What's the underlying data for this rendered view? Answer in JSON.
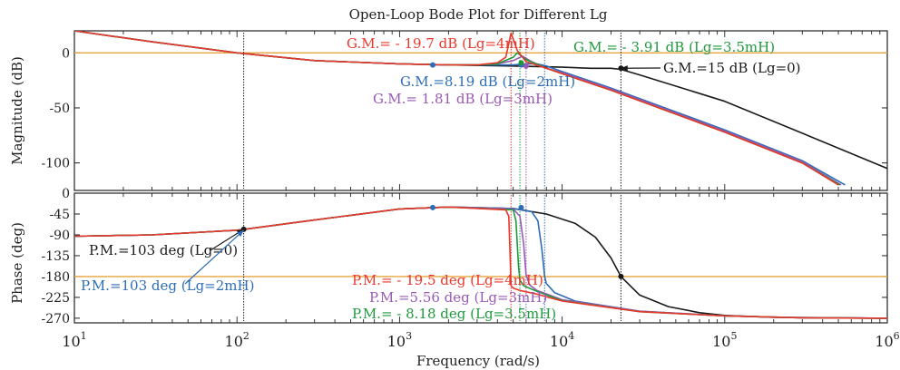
{
  "chart_data": {
    "type": "line",
    "title": "Open-Loop Bode Plot for Different Lg",
    "xlabel": "Frequency (rad/s)",
    "x_scale": "log",
    "xlim": [
      10,
      1000000
    ],
    "x_ticks": [
      {
        "value": 10,
        "base": "10",
        "exp": "1"
      },
      {
        "value": 100,
        "base": "10",
        "exp": "2"
      },
      {
        "value": 1000,
        "base": "10",
        "exp": "3"
      },
      {
        "value": 10000,
        "base": "10",
        "exp": "4"
      },
      {
        "value": 100000,
        "base": "10",
        "exp": "5"
      },
      {
        "value": 1000000,
        "base": "10",
        "exp": "6"
      }
    ],
    "grid": false,
    "colors": {
      "Lg=0": "#1a1a1a",
      "Lg=2mH": "#2e6db5",
      "Lg=3mH": "#9b59b6",
      "Lg=3.5mH": "#1e9a3c",
      "Lg=4mH": "#e8382c",
      "reference": "#e8a33c"
    },
    "magnitude": {
      "ylabel": "Magnitude (dB)",
      "ylim": [
        -125,
        20
      ],
      "y_ticks": [
        "0",
        "-50",
        "-100"
      ],
      "reference_line": 0,
      "series": [
        {
          "key": "Lg=0",
          "x": [
            10,
            30,
            100,
            300,
            1000,
            2000,
            5000,
            10000,
            15000,
            20000,
            23000,
            30000,
            100000,
            300000,
            1000000
          ],
          "y": [
            20,
            10,
            0,
            -7,
            -10,
            -11,
            -12,
            -13,
            -14,
            -14,
            -15,
            -20,
            -44,
            -73,
            -105
          ]
        },
        {
          "key": "Lg=2mH",
          "x": [
            10,
            30,
            100,
            300,
            1000,
            2000,
            3000,
            5000,
            6000,
            7000,
            8000,
            10000,
            20000,
            100000,
            300000,
            550000
          ],
          "y": [
            20,
            10,
            0,
            -7,
            -10,
            -11,
            -11,
            -11,
            -10,
            -10,
            -12,
            -17,
            -32,
            -70,
            -98,
            -120
          ]
        },
        {
          "key": "Lg=3mH",
          "x": [
            10,
            30,
            100,
            300,
            1000,
            2000,
            3000,
            4000,
            5000,
            5700,
            6500,
            8000,
            10000,
            20000,
            100000,
            300000,
            520000
          ],
          "y": [
            20,
            10,
            0,
            -7,
            -10,
            -11,
            -11,
            -10,
            -7,
            -3,
            -8,
            -14,
            -18,
            -33,
            -71,
            -99,
            -120
          ]
        },
        {
          "key": "Lg=3.5mH",
          "x": [
            10,
            30,
            100,
            300,
            1000,
            2000,
            3000,
            4000,
            5000,
            5300,
            6000,
            8000,
            10000,
            20000,
            100000,
            300000,
            510000
          ],
          "y": [
            20,
            10,
            0,
            -7,
            -10,
            -11,
            -11,
            -10,
            -4,
            0,
            -6,
            -14,
            -19,
            -34,
            -72,
            -100,
            -120
          ]
        },
        {
          "key": "Lg=4mH",
          "x": [
            10,
            30,
            100,
            300,
            1000,
            2000,
            3000,
            4000,
            4500,
            4850,
            5300,
            6000,
            8000,
            10000,
            20000,
            100000,
            300000,
            500000
          ],
          "y": [
            20,
            10,
            0,
            -7,
            -10,
            -11,
            -11,
            -9,
            -4,
            18,
            2,
            -8,
            -14,
            -19,
            -34,
            -72,
            -100,
            -120
          ]
        }
      ],
      "markers": [
        {
          "key": "Lg=0",
          "x": 23000,
          "y": -14
        },
        {
          "key": "Lg=2mH",
          "x": 1600,
          "y": -11
        },
        {
          "key": "Lg=2mH",
          "x": 5600,
          "y": -11
        },
        {
          "key": "Lg=3mH",
          "x": 6000,
          "y": -12
        },
        {
          "key": "Lg=3.5mH",
          "x": 5600,
          "y": -9
        }
      ],
      "annotations": [
        {
          "key": "Lg=4mH",
          "text": "G.M.= - 19.7 dB (Lg=4mH)",
          "anchor": "above crossover"
        },
        {
          "key": "Lg=3.5mH",
          "text": "G.M.= - 3.91 dB (Lg=3.5mH)",
          "anchor": "above crossover"
        },
        {
          "key": "Lg=0",
          "text": "G.M.=15 dB (Lg=0)",
          "anchor": "right of crossover"
        },
        {
          "key": "Lg=2mH",
          "text": "G.M.=8.19 dB (Lg=2mH)",
          "anchor": "below crossover"
        },
        {
          "key": "Lg=3mH",
          "text": "G.M.= 1.81 dB (Lg=3mH)",
          "anchor": "below crossover"
        }
      ]
    },
    "phase": {
      "ylabel": "Phase (deg)",
      "ylim": [
        -280,
        0
      ],
      "y_ticks": [
        "0",
        "-45",
        "-90",
        "-135",
        "-180",
        "-225",
        "-270"
      ],
      "reference_line": -180,
      "series": [
        {
          "key": "Lg=0",
          "x": [
            10,
            30,
            100,
            300,
            1000,
            2000,
            5000,
            8000,
            12000,
            16000,
            20000,
            23000,
            30000,
            45000,
            70000,
            100000,
            200000,
            500000,
            1000000
          ],
          "y": [
            -93,
            -90,
            -80,
            -58,
            -34,
            -30,
            -33,
            -45,
            -65,
            -95,
            -140,
            -180,
            -220,
            -245,
            -258,
            -264,
            -268,
            -269,
            -270
          ]
        },
        {
          "key": "Lg=2mH",
          "x": [
            10,
            30,
            100,
            300,
            1000,
            2000,
            5000,
            6500,
            7100,
            7500,
            7800,
            8000,
            9000,
            12000,
            30000,
            100000,
            300000,
            1000000
          ],
          "y": [
            -93,
            -90,
            -80,
            -58,
            -34,
            -30,
            -33,
            -40,
            -60,
            -120,
            -180,
            -195,
            -215,
            -233,
            -255,
            -265,
            -269,
            -270
          ]
        },
        {
          "key": "Lg=3mH",
          "x": [
            10,
            30,
            100,
            300,
            1000,
            2000,
            5000,
            5500,
            5800,
            6000,
            6300,
            7000,
            10000,
            30000,
            100000,
            300000,
            1000000
          ],
          "y": [
            -93,
            -90,
            -80,
            -58,
            -34,
            -30,
            -34,
            -50,
            -110,
            -175,
            -198,
            -210,
            -230,
            -255,
            -265,
            -269,
            -270
          ]
        },
        {
          "key": "Lg=3.5mH",
          "x": [
            10,
            30,
            100,
            300,
            1000,
            2000,
            5000,
            5200,
            5400,
            5500,
            5800,
            7000,
            10000,
            30000,
            100000,
            300000,
            1000000
          ],
          "y": [
            -93,
            -90,
            -80,
            -58,
            -34,
            -30,
            -36,
            -60,
            -160,
            -188,
            -200,
            -212,
            -232,
            -256,
            -265,
            -269,
            -270
          ]
        },
        {
          "key": "Lg=4mH",
          "x": [
            10,
            30,
            100,
            300,
            1000,
            2000,
            4500,
            4700,
            4800,
            4850,
            5000,
            5500,
            7000,
            10000,
            30000,
            100000,
            300000,
            1000000
          ],
          "y": [
            -93,
            -90,
            -80,
            -58,
            -34,
            -30,
            -36,
            -50,
            -150,
            -200,
            -205,
            -210,
            -218,
            -233,
            -256,
            -265,
            -269,
            -270
          ]
        }
      ],
      "markers": [
        {
          "key": "Lg=0",
          "x": 110,
          "y": -78
        },
        {
          "key": "Lg=0",
          "x": 23000,
          "y": -180
        },
        {
          "key": "Lg=2mH",
          "x": 1600,
          "y": -31
        },
        {
          "key": "Lg=2mH",
          "x": 5600,
          "y": -31
        }
      ],
      "annotations": [
        {
          "key": "Lg=0",
          "text": "P.M.=103 deg (Lg=0)",
          "anchor": "left of crossover"
        },
        {
          "key": "Lg=2mH",
          "text": "P.M.=103 deg (Lg=2mH)",
          "anchor": "below left"
        },
        {
          "key": "Lg=4mH",
          "text": "P.M.= - 19.5 deg (Lg=4mH)",
          "anchor": "below crossover"
        },
        {
          "key": "Lg=3mH",
          "text": "P.M.=5.56 deg (Lg=3mH)",
          "anchor": "below crossover"
        },
        {
          "key": "Lg=3.5mH",
          "text": "P.M.= - 8.18 deg (Lg=3.5mH)",
          "anchor": "below crossover"
        }
      ]
    },
    "crossover_lines": [
      {
        "key": "Lg=0",
        "x": 110
      },
      {
        "key": "Lg=0",
        "x": 23000
      },
      {
        "key": "Lg=2mH",
        "x": 7800
      },
      {
        "key": "Lg=3mH",
        "x": 6000
      },
      {
        "key": "Lg=3.5mH",
        "x": 5500
      },
      {
        "key": "Lg=4mH",
        "x": 4850
      }
    ]
  }
}
